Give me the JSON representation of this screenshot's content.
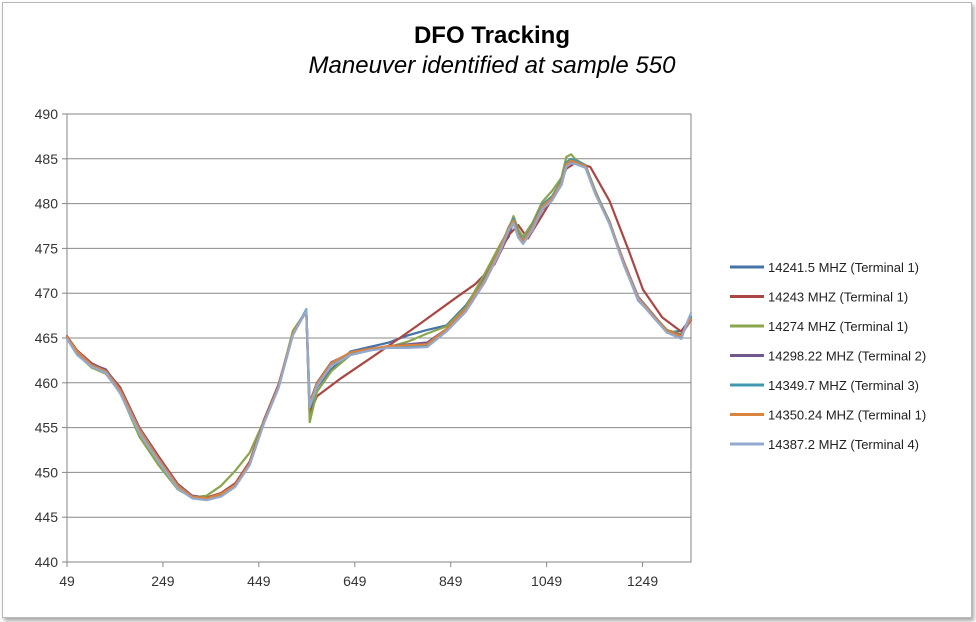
{
  "chart_data": {
    "type": "line",
    "title": "DFO Tracking",
    "subtitle": "Maneuver identified at sample 550",
    "xlabel": "",
    "ylabel": "",
    "xlim": [
      49,
      1350
    ],
    "ylim": [
      440,
      490
    ],
    "x_ticks": [
      "49",
      "249",
      "449",
      "649",
      "849",
      "1049",
      "1249"
    ],
    "x_tick_values": [
      49,
      249,
      449,
      649,
      849,
      1049,
      1249
    ],
    "y_ticks": [
      "490",
      "485",
      "480",
      "475",
      "470",
      "465",
      "460",
      "455",
      "450",
      "445",
      "440"
    ],
    "y_tick_values": [
      490,
      485,
      480,
      475,
      470,
      465,
      460,
      455,
      450,
      445,
      440
    ],
    "grid": "horizontal",
    "legend_position": "right",
    "series": [
      {
        "name": "14241.5 MHZ (Terminal 1)",
        "color": "#4572a7",
        "x": [
          49,
          70,
          100,
          130,
          160,
          200,
          240,
          280,
          310,
          340,
          370,
          400,
          430,
          460,
          490,
          520,
          548,
          555,
          570,
          600,
          640,
          680,
          720,
          760,
          800,
          840,
          880,
          920,
          950,
          970,
          980,
          990,
          1000,
          1020,
          1040,
          1060,
          1080,
          1090,
          1100,
          1110,
          1130,
          1150,
          1180,
          1210,
          1240,
          1270,
          1300,
          1330,
          1340,
          1350
        ],
        "y": [
          465,
          463.5,
          462,
          461.3,
          459.2,
          454.7,
          451.5,
          448.5,
          447.3,
          447,
          447.5,
          448.5,
          451,
          455.7,
          459.5,
          465.5,
          468,
          456.5,
          459.5,
          461.5,
          463.5,
          464,
          464.5,
          465.3,
          465.9,
          466.4,
          468.6,
          471.8,
          474.8,
          476.3,
          478.1,
          476.2,
          475.8,
          477.2,
          479.3,
          480.4,
          482.1,
          484.2,
          484.8,
          484.5,
          484,
          481.2,
          478,
          473.2,
          469.2,
          467.5,
          465.6,
          465.8,
          466.5,
          467
        ]
      },
      {
        "name": "14243 MHZ (Terminal 1)",
        "color": "#aa4643",
        "x": [
          49,
          70,
          100,
          130,
          160,
          200,
          240,
          280,
          310,
          340,
          370,
          400,
          430,
          460,
          490,
          520,
          548,
          555,
          570,
          620,
          700,
          780,
          860,
          900,
          940,
          970,
          990,
          1010,
          1040,
          1070,
          1090,
          1110,
          1140,
          1180,
          1220,
          1250,
          1290,
          1330,
          1350
        ],
        "y": [
          465.2,
          463.6,
          462.2,
          461.4,
          459.5,
          455,
          451.8,
          448.7,
          447.4,
          447.2,
          447.7,
          448.8,
          451.2,
          455.9,
          459.8,
          465.5,
          468,
          456.5,
          458.5,
          460.5,
          463.4,
          466.4,
          469.5,
          471,
          473.2,
          476.5,
          477.6,
          476.1,
          478.7,
          481.4,
          483.9,
          484.6,
          484.1,
          480.3,
          474.8,
          470.4,
          467.3,
          465.7,
          467.2
        ]
      },
      {
        "name": "14274 MHZ (Terminal 1)",
        "color": "#89a54e",
        "x": [
          49,
          70,
          100,
          130,
          160,
          200,
          240,
          280,
          310,
          340,
          370,
          400,
          430,
          460,
          490,
          520,
          548,
          555,
          570,
          600,
          640,
          680,
          720,
          760,
          800,
          840,
          880,
          920,
          950,
          970,
          980,
          990,
          1000,
          1020,
          1040,
          1060,
          1080,
          1090,
          1100,
          1110,
          1130,
          1150,
          1180,
          1210,
          1240,
          1270,
          1300,
          1330,
          1340,
          1350
        ],
        "y": [
          465,
          463.2,
          461.7,
          461,
          458.9,
          454,
          450.8,
          448.1,
          447.2,
          447.4,
          448.5,
          450.2,
          452.2,
          455.8,
          459.6,
          465.8,
          468,
          455.6,
          459,
          461.3,
          463.1,
          463.6,
          464,
          464.6,
          465.5,
          466.3,
          468.4,
          472.2,
          475.2,
          477.1,
          478.6,
          477.1,
          476.3,
          477.9,
          480.2,
          481.4,
          482.9,
          485.2,
          485.5,
          484.9,
          484.3,
          481.5,
          477.8,
          473.4,
          469.4,
          467.6,
          465.9,
          465.4,
          466.3,
          467.3
        ]
      },
      {
        "name": "14298.22 MHZ (Terminal 2)",
        "color": "#71588f",
        "x": [
          49,
          70,
          100,
          130,
          160,
          200,
          240,
          280,
          310,
          340,
          370,
          400,
          430,
          460,
          490,
          520,
          548,
          555,
          570,
          600,
          640,
          680,
          720,
          760,
          800,
          840,
          880,
          920,
          950,
          970,
          980,
          990,
          1000,
          1020,
          1040,
          1060,
          1080,
          1090,
          1100,
          1110,
          1130,
          1150,
          1180,
          1210,
          1240,
          1270,
          1300,
          1330,
          1340,
          1350
        ],
        "y": [
          465.1,
          463.4,
          462.1,
          461.5,
          459.3,
          455,
          451.6,
          448.6,
          447.4,
          447.1,
          447.6,
          448.6,
          451,
          455.8,
          459.7,
          465.4,
          468,
          457.8,
          460,
          462.3,
          463.3,
          463.7,
          464.1,
          464.3,
          464.5,
          466,
          468.2,
          471.4,
          474.6,
          477.2,
          477.9,
          476.4,
          475.6,
          477.3,
          479.6,
          480.5,
          482.3,
          484.2,
          484.7,
          484.6,
          484.2,
          481.3,
          477.9,
          473.5,
          469.6,
          467.7,
          465.8,
          465.3,
          466.2,
          467
        ]
      },
      {
        "name": "14349.7 MHZ (Terminal 3)",
        "color": "#4198af",
        "x": [
          49,
          70,
          100,
          130,
          160,
          200,
          240,
          280,
          310,
          340,
          370,
          400,
          430,
          460,
          490,
          520,
          548,
          555,
          570,
          600,
          640,
          680,
          720,
          760,
          800,
          840,
          880,
          920,
          950,
          970,
          980,
          990,
          1000,
          1020,
          1040,
          1060,
          1080,
          1090,
          1100,
          1110,
          1130,
          1150,
          1180,
          1210,
          1240,
          1270,
          1300,
          1330,
          1340,
          1350
        ],
        "y": [
          465,
          463.3,
          461.9,
          461.2,
          459,
          454.6,
          451.4,
          448.4,
          447.2,
          447,
          447.4,
          448.5,
          450.9,
          455.6,
          459.5,
          465.4,
          468.2,
          457.5,
          459.8,
          462,
          463.2,
          463.7,
          464,
          464.1,
          464.2,
          465.9,
          468.1,
          471.6,
          474.7,
          477.4,
          478.3,
          476.7,
          475.9,
          477.6,
          479.9,
          480.8,
          482.6,
          484.6,
          485,
          484.8,
          484.3,
          481.4,
          478,
          473.3,
          469.5,
          467.6,
          465.7,
          465.1,
          466.4,
          467.4
        ]
      },
      {
        "name": "14350.24 MHZ (Terminal 1)",
        "color": "#db843d",
        "x": [
          49,
          70,
          100,
          130,
          160,
          200,
          240,
          280,
          310,
          340,
          370,
          400,
          430,
          460,
          490,
          520,
          548,
          555,
          570,
          600,
          640,
          680,
          720,
          760,
          800,
          840,
          880,
          920,
          950,
          970,
          980,
          990,
          1000,
          1020,
          1040,
          1060,
          1080,
          1090,
          1100,
          1110,
          1130,
          1150,
          1180,
          1210,
          1240,
          1270,
          1300,
          1330,
          1340,
          1350
        ],
        "y": [
          465.1,
          463.5,
          462,
          461.3,
          459.2,
          454.8,
          451.5,
          448.5,
          447.3,
          447.1,
          447.6,
          448.6,
          451,
          455.7,
          459.6,
          465.5,
          468,
          457.6,
          459.9,
          462.2,
          463.4,
          463.8,
          464.1,
          464.2,
          464.3,
          466,
          468.2,
          471.5,
          474.7,
          477.3,
          478.1,
          476.5,
          475.8,
          477.4,
          479.7,
          480.6,
          482.4,
          484.4,
          484.8,
          484.6,
          484.2,
          481.3,
          477.9,
          473.4,
          469.5,
          467.6,
          465.8,
          465.2,
          466.3,
          467.1
        ]
      },
      {
        "name": "14387.2 MHZ (Terminal 4)",
        "color": "#93a9cf",
        "x": [
          49,
          70,
          100,
          130,
          160,
          200,
          240,
          280,
          310,
          340,
          370,
          400,
          430,
          460,
          490,
          520,
          548,
          555,
          570,
          600,
          640,
          680,
          720,
          760,
          800,
          840,
          880,
          920,
          950,
          970,
          980,
          990,
          1000,
          1020,
          1040,
          1060,
          1080,
          1090,
          1100,
          1110,
          1130,
          1150,
          1180,
          1210,
          1240,
          1270,
          1300,
          1330,
          1340,
          1350
        ],
        "y": [
          464.9,
          463.1,
          461.8,
          461.1,
          458.8,
          454.4,
          451.2,
          448.2,
          447.1,
          446.9,
          447.3,
          448.4,
          450.8,
          455.5,
          459.4,
          465.3,
          468.1,
          457.3,
          459.6,
          461.9,
          463.1,
          463.6,
          463.9,
          463.9,
          464,
          465.7,
          467.9,
          471.2,
          474.4,
          477,
          477.8,
          476.2,
          475.5,
          477.1,
          479.4,
          480.3,
          482.1,
          484.1,
          484.5,
          484.4,
          484,
          481.1,
          477.7,
          473.1,
          469.3,
          467.4,
          465.6,
          464.9,
          466.5,
          467.8
        ]
      }
    ]
  }
}
